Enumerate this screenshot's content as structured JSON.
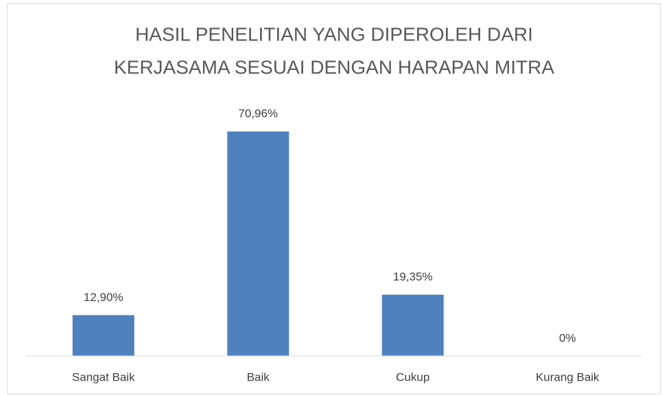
{
  "chart_data": {
    "type": "bar",
    "title": [
      "HASIL PENELITIAN YANG DIPEROLEH DARI",
      "KERJASAMA SESUAI DENGAN HARAPAN MITRA"
    ],
    "categories": [
      "Sangat Baik",
      "Baik",
      "Cukup",
      "Kurang Baik"
    ],
    "values": [
      12.9,
      70.96,
      19.35,
      0
    ],
    "value_labels": [
      "12,90%",
      "70,96%",
      "19,35%",
      "0%"
    ],
    "color": "#4f81bd",
    "ylim": [
      0,
      80
    ]
  }
}
